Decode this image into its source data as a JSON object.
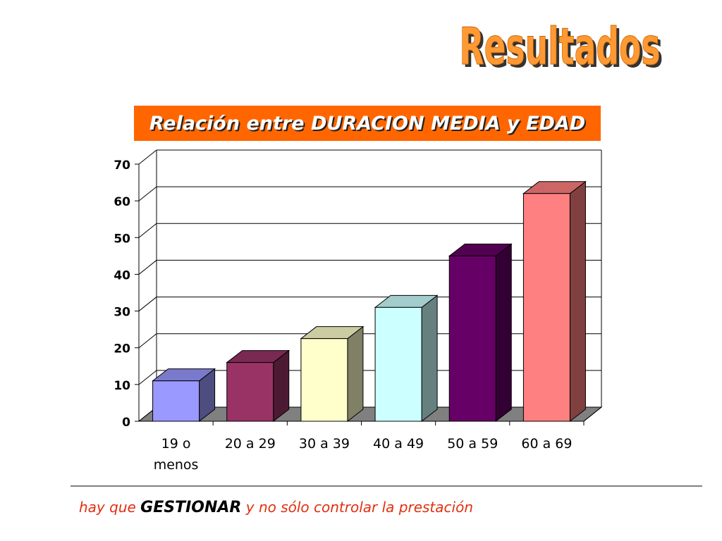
{
  "header": {
    "title": "Resultados"
  },
  "chart_data": {
    "type": "bar3d",
    "title": "Relación entre DURACION MEDIA y EDAD",
    "categories": [
      "19 o menos",
      "20 a 29",
      "30 a 39",
      "40 a 49",
      "50 a 59",
      "60 a 69"
    ],
    "values": [
      11,
      16,
      22.5,
      31,
      45,
      62
    ],
    "colors": [
      "#9999ff",
      "#993366",
      "#ffffcc",
      "#ccffff",
      "#660066",
      "#ff8080"
    ],
    "ylim": [
      0,
      70
    ],
    "yticks": [
      0,
      10,
      20,
      30,
      40,
      50,
      60,
      70
    ],
    "grid": true
  },
  "footer": {
    "parts": [
      "hay que",
      "GESTIONAR",
      "y no sólo controlar la prestación"
    ]
  }
}
